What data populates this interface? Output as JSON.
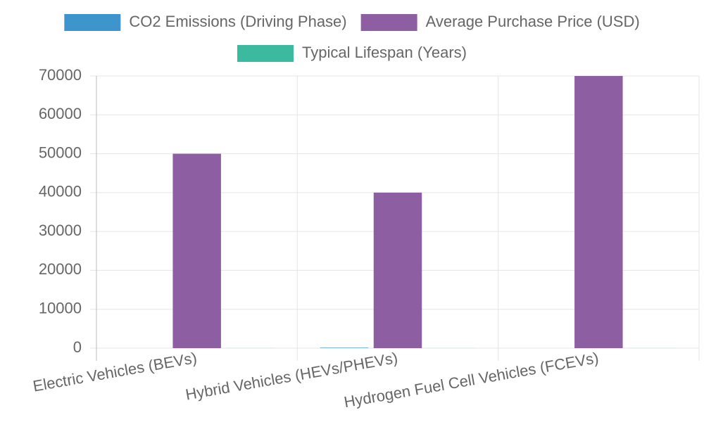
{
  "chart_data": {
    "type": "bar",
    "categories": [
      "Electric Vehicles (BEVs)",
      "Hybrid Vehicles (HEVs/PHEVs)",
      "Hydrogen Fuel Cell Vehicles (FCEVs)"
    ],
    "series": [
      {
        "name": "CO2 Emissions (Driving Phase)",
        "color": "#3e95cd",
        "values": [
          0,
          120,
          0
        ]
      },
      {
        "name": "Average Purchase Price (USD)",
        "color": "#8e5ea2",
        "values": [
          50000,
          40000,
          70000
        ]
      },
      {
        "name": "Typical Lifespan (Years)",
        "color": "#3cba9f",
        "values": [
          15,
          15,
          15
        ]
      }
    ],
    "ylim": [
      0,
      70000
    ],
    "yticks": [
      0,
      10000,
      20000,
      30000,
      40000,
      50000,
      60000,
      70000
    ],
    "grid": true
  }
}
